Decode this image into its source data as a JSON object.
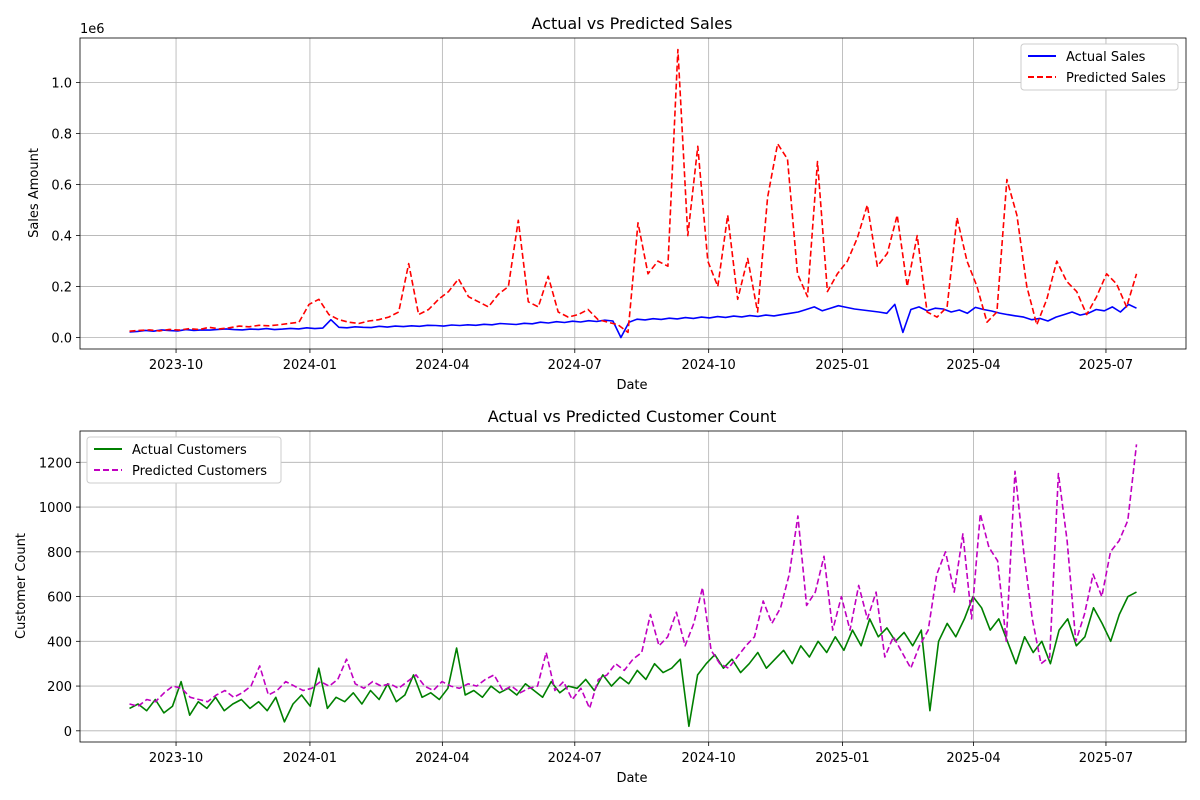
{
  "chart_data": [
    {
      "type": "line",
      "title": "Actual vs Predicted Sales",
      "xlabel": "Date",
      "ylabel": "Sales Amount",
      "offset_label": "1e6",
      "x_start": "2023-08-30",
      "x_end": "2025-07-22",
      "xlim": [
        "2023-07-27",
        "2025-08-25"
      ],
      "ylim": [
        -45000,
        1175000
      ],
      "y_ticks": [
        0,
        0.2,
        0.4,
        0.6,
        0.8,
        1.0
      ],
      "y_tick_labels": [
        "0.0",
        "0.2",
        "0.4",
        "0.6",
        "0.8",
        "1.0"
      ],
      "y_scale": 1000000,
      "x_ticks": [
        "2023-10-01",
        "2024-01-01",
        "2024-04-01",
        "2024-07-01",
        "2024-10-01",
        "2025-01-01",
        "2025-04-01",
        "2025-07-01"
      ],
      "x_tick_labels": [
        "2023-10",
        "2024-01",
        "2024-04",
        "2024-07",
        "2024-10",
        "2025-01",
        "2025-04",
        "2025-07"
      ],
      "grid": true,
      "legend": "top-right",
      "series": [
        {
          "name": "Actual Sales",
          "color": "#0000ff",
          "dash": "solid",
          "values": [
            22000,
            24000,
            28000,
            25000,
            30000,
            27000,
            26000,
            31000,
            28000,
            30000,
            29000,
            32000,
            34000,
            31000,
            30000,
            33000,
            32000,
            35000,
            31000,
            33000,
            36000,
            34000,
            38000,
            35000,
            37000,
            70000,
            40000,
            38000,
            42000,
            40000,
            39000,
            44000,
            41000,
            45000,
            43000,
            46000,
            44000,
            48000,
            47000,
            45000,
            49000,
            47000,
            50000,
            48000,
            52000,
            50000,
            55000,
            53000,
            51000,
            56000,
            54000,
            60000,
            57000,
            62000,
            59000,
            64000,
            61000,
            66000,
            63000,
            68000,
            65000,
            0,
            60000,
            72000,
            69000,
            74000,
            71000,
            76000,
            73000,
            78000,
            75000,
            80000,
            77000,
            82000,
            79000,
            84000,
            81000,
            86000,
            83000,
            88000,
            85000,
            90000,
            95000,
            100000,
            110000,
            120000,
            105000,
            115000,
            125000,
            118000,
            112000,
            108000,
            104000,
            100000,
            95000,
            130000,
            20000,
            110000,
            120000,
            105000,
            115000,
            112000,
            100000,
            108000,
            95000,
            118000,
            110000,
            104000,
            96000,
            90000,
            85000,
            80000,
            70000,
            75000,
            65000,
            80000,
            90000,
            100000,
            88000,
            95000,
            110000,
            105000,
            120000,
            100000,
            130000,
            115000
          ]
        },
        {
          "name": "Predicted Sales",
          "color": "#ff0000",
          "dash": "dashed",
          "values": [
            25000,
            28000,
            30000,
            26000,
            32000,
            29000,
            35000,
            31000,
            40000,
            34000,
            38000,
            45000,
            42000,
            48000,
            46000,
            50000,
            55000,
            60000,
            130000,
            150000,
            90000,
            70000,
            60000,
            55000,
            65000,
            70000,
            80000,
            100000,
            290000,
            90000,
            110000,
            150000,
            180000,
            230000,
            160000,
            140000,
            120000,
            170000,
            200000,
            460000,
            140000,
            120000,
            240000,
            100000,
            80000,
            90000,
            110000,
            70000,
            60000,
            50000,
            20000,
            450000,
            250000,
            300000,
            280000,
            1130000,
            400000,
            750000,
            300000,
            200000,
            480000,
            150000,
            310000,
            100000,
            550000,
            760000,
            700000,
            250000,
            160000,
            690000,
            180000,
            250000,
            300000,
            390000,
            520000,
            280000,
            330000,
            480000,
            200000,
            400000,
            100000,
            80000,
            120000,
            470000,
            300000,
            200000,
            60000,
            100000,
            620000,
            480000,
            200000,
            50000,
            150000,
            300000,
            220000,
            180000,
            90000,
            160000,
            250000,
            210000,
            120000,
            250000
          ]
        }
      ]
    },
    {
      "type": "line",
      "title": "Actual vs Predicted Customer Count",
      "xlabel": "Date",
      "ylabel": "Customer Count",
      "x_start": "2023-08-30",
      "x_end": "2025-07-22",
      "xlim": [
        "2023-07-27",
        "2025-08-25"
      ],
      "ylim": [
        -50,
        1340
      ],
      "y_ticks": [
        0,
        200,
        400,
        600,
        800,
        1000,
        1200
      ],
      "y_tick_labels": [
        "0",
        "200",
        "400",
        "600",
        "800",
        "1000",
        "1200"
      ],
      "x_ticks": [
        "2023-10-01",
        "2024-01-01",
        "2024-04-01",
        "2024-07-01",
        "2024-10-01",
        "2025-01-01",
        "2025-04-01",
        "2025-07-01"
      ],
      "x_tick_labels": [
        "2023-10",
        "2024-01",
        "2024-04",
        "2024-07",
        "2024-10",
        "2025-01",
        "2025-04",
        "2025-07"
      ],
      "grid": true,
      "legend": "top-left",
      "series": [
        {
          "name": "Actual Customers",
          "color": "#008000",
          "dash": "solid",
          "values": [
            100,
            120,
            90,
            140,
            80,
            110,
            220,
            70,
            130,
            100,
            150,
            90,
            120,
            140,
            100,
            130,
            90,
            150,
            40,
            120,
            160,
            110,
            280,
            100,
            150,
            130,
            170,
            120,
            180,
            140,
            210,
            130,
            160,
            250,
            150,
            170,
            140,
            190,
            370,
            160,
            180,
            150,
            200,
            170,
            190,
            160,
            210,
            180,
            150,
            220,
            170,
            200,
            190,
            230,
            180,
            250,
            200,
            240,
            210,
            270,
            230,
            300,
            260,
            280,
            320,
            20,
            250,
            300,
            340,
            280,
            320,
            260,
            300,
            350,
            280,
            320,
            360,
            300,
            380,
            330,
            400,
            350,
            420,
            360,
            450,
            380,
            500,
            420,
            460,
            400,
            440,
            380,
            450,
            90,
            400,
            480,
            420,
            500,
            600,
            550,
            450,
            500,
            400,
            300,
            420,
            350,
            400,
            300,
            450,
            500,
            380,
            420,
            550,
            480,
            400,
            520,
            600,
            620
          ]
        },
        {
          "name": "Predicted Customers",
          "color": "#c000c0",
          "dash": "dashed",
          "values": [
            120,
            110,
            140,
            130,
            170,
            200,
            190,
            150,
            140,
            130,
            160,
            180,
            150,
            170,
            200,
            290,
            160,
            180,
            220,
            200,
            180,
            190,
            220,
            200,
            230,
            320,
            210,
            190,
            220,
            200,
            210,
            190,
            220,
            250,
            200,
            180,
            220,
            200,
            190,
            210,
            200,
            230,
            250,
            180,
            200,
            170,
            190,
            200,
            350,
            180,
            220,
            140,
            190,
            100,
            230,
            250,
            300,
            270,
            320,
            350,
            520,
            380,
            420,
            530,
            380,
            480,
            640,
            360,
            300,
            280,
            330,
            380,
            420,
            580,
            480,
            550,
            700,
            960,
            560,
            620,
            780,
            450,
            600,
            450,
            650,
            500,
            620,
            330,
            420,
            350,
            280,
            380,
            450,
            700,
            800,
            620,
            880,
            500,
            970,
            820,
            760,
            400,
            1160,
            800,
            500,
            300,
            330,
            1150,
            850,
            400,
            520,
            700,
            600,
            800,
            850,
            940,
            1280
          ]
        }
      ]
    }
  ]
}
